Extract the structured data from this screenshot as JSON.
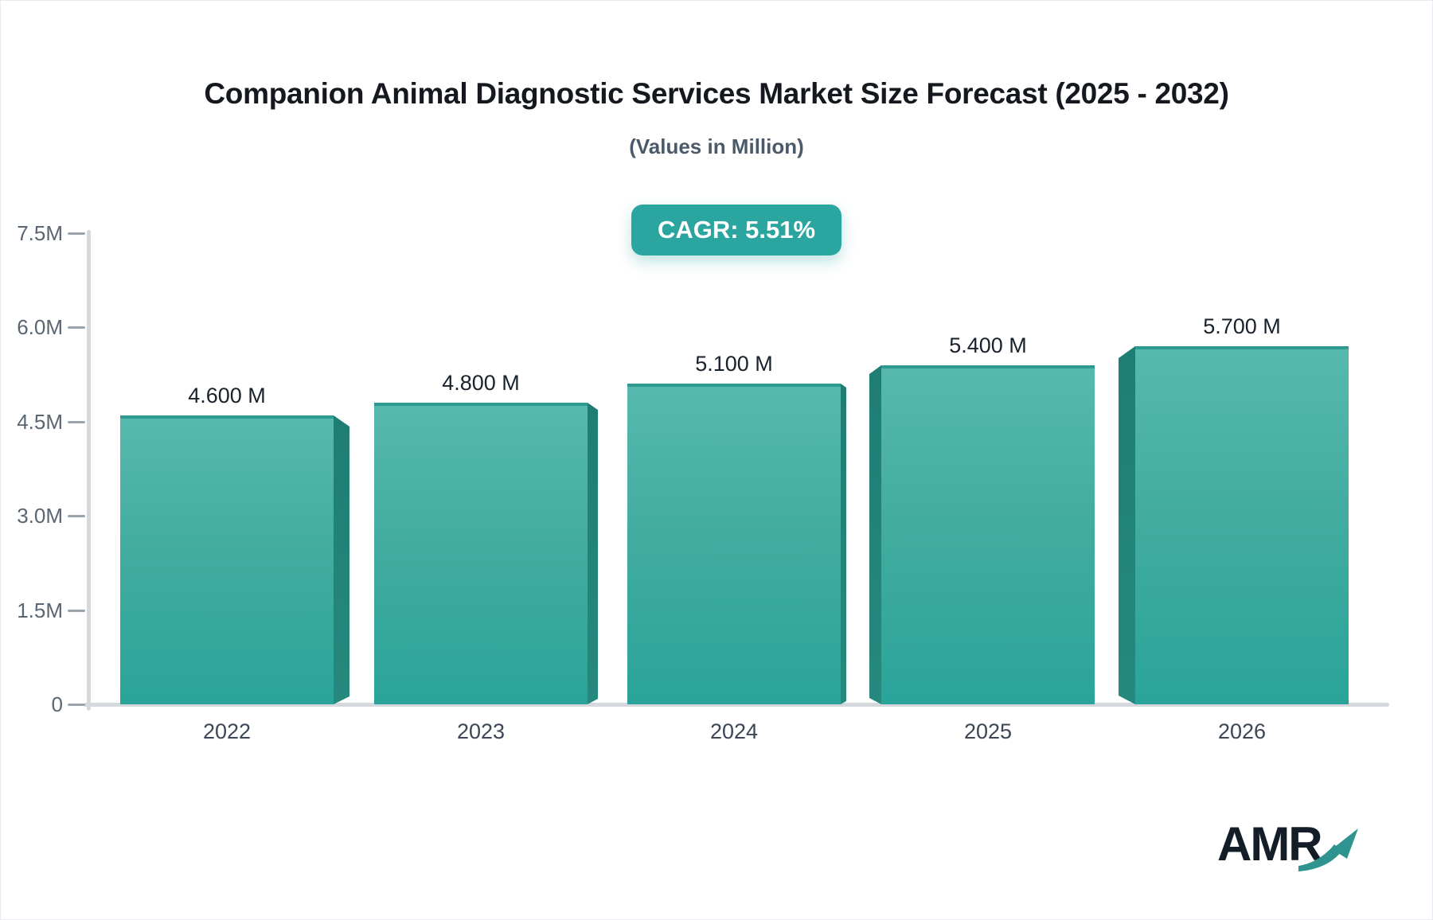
{
  "title": "Companion Animal Diagnostic Services Market Size Forecast (2025 - 2032)",
  "subtitle": "(Values in Million)",
  "badge": {
    "label": "CAGR: 5.51%"
  },
  "logo": {
    "text": "AMR"
  },
  "colors": {
    "title_text": "#15191f",
    "subtitle_text": "#4a5a6b",
    "badge_bg": "#2aa59f",
    "bar_top": "#57b9ae",
    "bar_bottom": "#2aa49a",
    "bar_top_edge": "#2f9a8f",
    "bar_side": "#1f7d74",
    "axis_line": "#d5d9de",
    "tick_dash": "#9aa4af",
    "ytick_text": "#5b6673",
    "xtick_text": "#3c4654",
    "value_text": "#19222c",
    "logo_text": "#141e28",
    "logo_arrow": "#2f9490"
  },
  "chart_data": {
    "type": "bar",
    "style": "3d-perspective-bars",
    "title": "Companion Animal Diagnostic Services Market Size Forecast (2025 - 2032)",
    "subtitle": "(Values in Million)",
    "cagr_annotation": "CAGR: 5.51%",
    "unit": "Million",
    "categories": [
      "2022",
      "2023",
      "2024",
      "2025",
      "2026"
    ],
    "values": [
      4.6,
      4.8,
      5.1,
      5.4,
      5.7
    ],
    "value_labels": [
      "4.600 M",
      "4.800 M",
      "5.100 M",
      "5.400 M",
      "5.700 M"
    ],
    "xlabel": "",
    "ylabel": "",
    "ylim": [
      0,
      7.5
    ],
    "yticks": [
      {
        "value": 0.0,
        "label": "0"
      },
      {
        "value": 1.5,
        "label": "1.5M"
      },
      {
        "value": 3.0,
        "label": "3.0M"
      },
      {
        "value": 4.5,
        "label": "4.5M"
      },
      {
        "value": 6.0,
        "label": "6.0M"
      },
      {
        "value": 7.5,
        "label": "7.5M"
      }
    ],
    "grid": false,
    "legend": null
  }
}
